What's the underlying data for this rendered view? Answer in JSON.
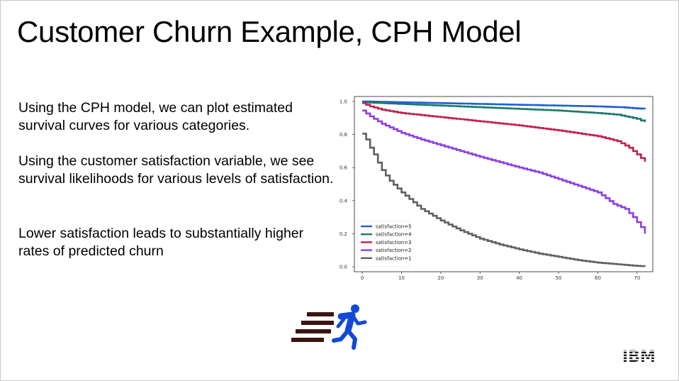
{
  "slide": {
    "title": "Customer Churn Example, CPH Model",
    "paragraphs": [
      "Using the CPH model, we can plot estimated survival curves for various categories.",
      "Using the customer satisfaction variable, we see survival likelihoods for various levels of satisfaction.",
      "Lower satisfaction leads to substantially higher rates of predicted churn"
    ],
    "logo_text": "IBM",
    "icon": "running-person-icon"
  },
  "chart_data": {
    "type": "line",
    "step": true,
    "title": "",
    "xlabel": "",
    "ylabel": "",
    "xlim": [
      -2,
      74
    ],
    "ylim": [
      -0.03,
      1.03
    ],
    "xticks": [
      0,
      10,
      20,
      30,
      40,
      50,
      60,
      70
    ],
    "yticks": [
      0.0,
      0.2,
      0.4,
      0.6,
      0.8,
      1.0
    ],
    "ytick_labels": [
      "0.0",
      "0.2",
      "0.4",
      "0.6",
      "0.8",
      "1.0"
    ],
    "grid": false,
    "legend_position": "lower-left",
    "series": [
      {
        "name": "satisfaction=5",
        "color": "#1f5fd6",
        "points": [
          [
            0,
            1.0
          ],
          [
            10,
            0.995
          ],
          [
            20,
            0.99
          ],
          [
            30,
            0.985
          ],
          [
            40,
            0.98
          ],
          [
            50,
            0.975
          ],
          [
            60,
            0.97
          ],
          [
            66,
            0.965
          ],
          [
            70,
            0.958
          ],
          [
            72,
            0.955
          ]
        ]
      },
      {
        "name": "satisfaction=4",
        "color": "#1a7a6e",
        "points": [
          [
            0,
            0.995
          ],
          [
            10,
            0.985
          ],
          [
            20,
            0.975
          ],
          [
            30,
            0.965
          ],
          [
            40,
            0.955
          ],
          [
            50,
            0.945
          ],
          [
            60,
            0.93
          ],
          [
            65,
            0.92
          ],
          [
            70,
            0.895
          ],
          [
            72,
            0.875
          ]
        ]
      },
      {
        "name": "satisfaction=3",
        "color": "#c2214f",
        "points": [
          [
            0,
            0.99
          ],
          [
            2,
            0.97
          ],
          [
            5,
            0.95
          ],
          [
            10,
            0.93
          ],
          [
            20,
            0.905
          ],
          [
            30,
            0.88
          ],
          [
            40,
            0.855
          ],
          [
            50,
            0.825
          ],
          [
            60,
            0.79
          ],
          [
            65,
            0.76
          ],
          [
            68,
            0.72
          ],
          [
            70,
            0.68
          ],
          [
            72,
            0.635
          ]
        ]
      },
      {
        "name": "satisfaction=2",
        "color": "#8a3fe0",
        "points": [
          [
            0,
            0.945
          ],
          [
            2,
            0.91
          ],
          [
            5,
            0.865
          ],
          [
            10,
            0.81
          ],
          [
            15,
            0.77
          ],
          [
            20,
            0.735
          ],
          [
            30,
            0.665
          ],
          [
            40,
            0.6
          ],
          [
            45,
            0.57
          ],
          [
            50,
            0.53
          ],
          [
            55,
            0.49
          ],
          [
            60,
            0.45
          ],
          [
            64,
            0.38
          ],
          [
            67,
            0.35
          ],
          [
            69,
            0.3
          ],
          [
            71,
            0.24
          ],
          [
            72,
            0.2
          ]
        ]
      },
      {
        "name": "satisfaction=1",
        "color": "#606060",
        "points": [
          [
            0,
            0.805
          ],
          [
            1,
            0.77
          ],
          [
            2,
            0.72
          ],
          [
            3,
            0.68
          ],
          [
            4,
            0.63
          ],
          [
            5,
            0.585
          ],
          [
            7,
            0.52
          ],
          [
            10,
            0.45
          ],
          [
            13,
            0.39
          ],
          [
            15,
            0.35
          ],
          [
            20,
            0.28
          ],
          [
            25,
            0.22
          ],
          [
            30,
            0.17
          ],
          [
            35,
            0.135
          ],
          [
            40,
            0.105
          ],
          [
            45,
            0.08
          ],
          [
            50,
            0.06
          ],
          [
            55,
            0.04
          ],
          [
            60,
            0.025
          ],
          [
            65,
            0.015
          ],
          [
            70,
            0.005
          ],
          [
            72,
            0.003
          ]
        ]
      }
    ]
  }
}
